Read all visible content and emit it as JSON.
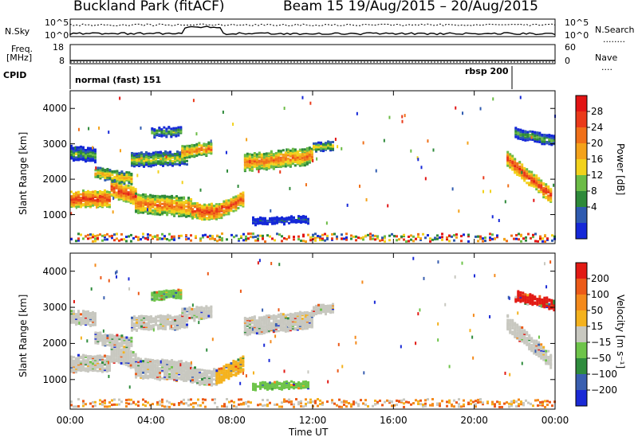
{
  "header": {
    "title_left": "Buckland Park (fitACF)",
    "title_right": "Beam 15 19/Aug/2015 – 20/Aug/2015"
  },
  "status": {
    "nsky_label": "N.Sky",
    "nsearch_label": "N.Search",
    "nsky_ticks": [
      "10^5",
      "10^0"
    ],
    "nsearch_ticks": [
      "10^5",
      "10^0"
    ],
    "freq_label_line1": "Freq.",
    "freq_label_line2": "[MHz]",
    "freq_ticks": [
      "18",
      "8"
    ],
    "nave_label": "Nave",
    "nave_ticks": [
      "60",
      "0"
    ],
    "cpid_label": "CPID",
    "cpid_mode1": "normal (fast) 151",
    "cpid_mode2": "rbsp 200"
  },
  "chart_data": [
    {
      "type": "heatmap",
      "title": "",
      "ylabel": "Slant Range [km]",
      "xlabel": "Time UT",
      "x_ticks": [
        "00:00",
        "04:00",
        "08:00",
        "12:00",
        "16:00",
        "20:00",
        "00:00"
      ],
      "y_ticks": [
        1000,
        2000,
        3000,
        4000
      ],
      "xlim_hours": [
        0,
        24
      ],
      "ylim_km": [
        180,
        4500
      ],
      "colorbar_label": "Power [dB]",
      "colorbar_ticks": [
        "28",
        "24",
        "20",
        "16",
        "12",
        "8",
        "4"
      ],
      "colors": [
        "#1528d8",
        "#2f5bb0",
        "#2e8a3a",
        "#6cbc46",
        "#f2d21c",
        "#f4a21a",
        "#f07019",
        "#ea3a1a",
        "#e21414"
      ]
    },
    {
      "type": "heatmap",
      "title": "",
      "ylabel": "Slant Range [km]",
      "xlabel": "Time UT",
      "x_ticks": [
        "00:00",
        "04:00",
        "08:00",
        "12:00",
        "16:00",
        "20:00",
        "00:00"
      ],
      "y_ticks": [
        1000,
        2000,
        3000,
        4000
      ],
      "xlim_hours": [
        0,
        24
      ],
      "ylim_km": [
        180,
        4500
      ],
      "colorbar_label": "Velocity [m s⁻¹]",
      "colorbar_ticks": [
        "200",
        "100",
        "50",
        "15",
        "−15",
        "−50",
        "−100",
        "−200"
      ],
      "colors": [
        "#1a2ad6",
        "#3a5fb0",
        "#2f8c3d",
        "#6ec44a",
        "#c8c8c0",
        "#f4b21e",
        "#f48a1c",
        "#ec5a18",
        "#e21a14"
      ]
    }
  ],
  "x_axis_title": "Time UT"
}
